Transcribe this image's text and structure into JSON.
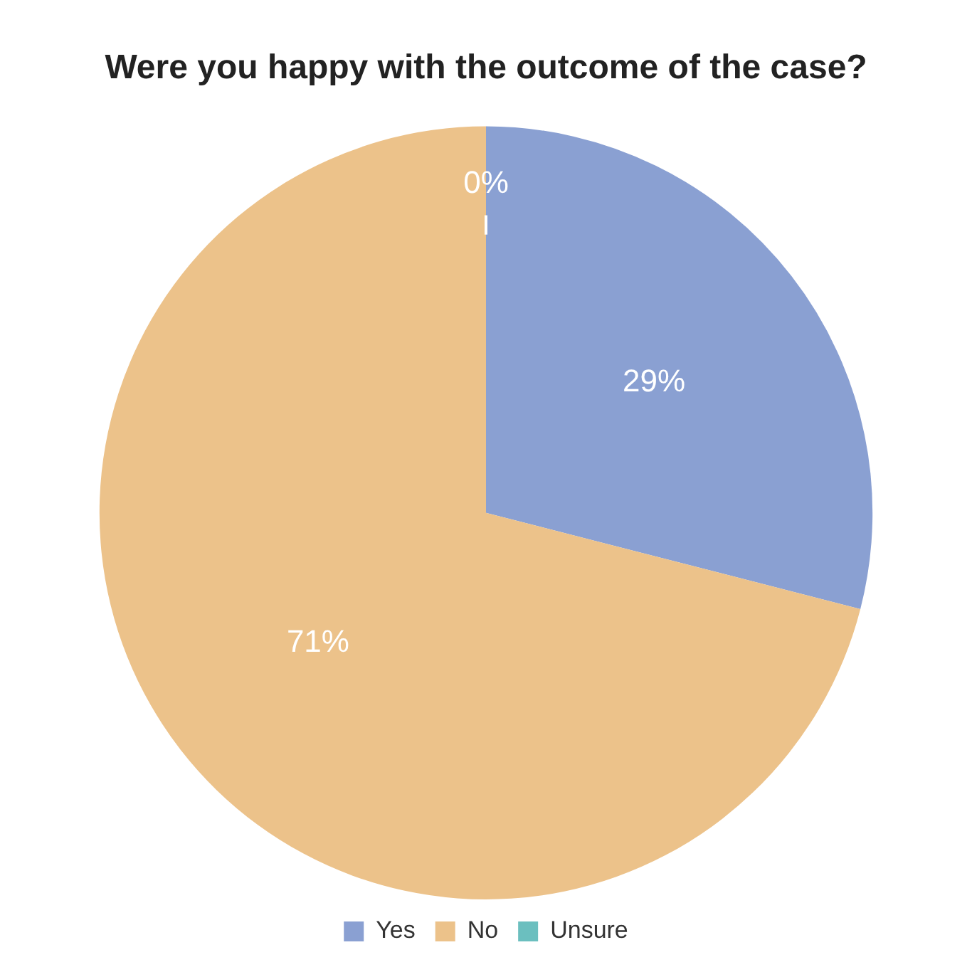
{
  "chart_data": {
    "type": "pie",
    "title": "Were you happy with the outcome of the case?",
    "categories": [
      "Yes",
      "No",
      "Unsure"
    ],
    "values": [
      29,
      71,
      0
    ],
    "value_labels": [
      "29%",
      "71%",
      "0%"
    ],
    "colors": [
      "#8aa0d2",
      "#ecc28a",
      "#6bbfbf"
    ],
    "legend": "bottom"
  }
}
